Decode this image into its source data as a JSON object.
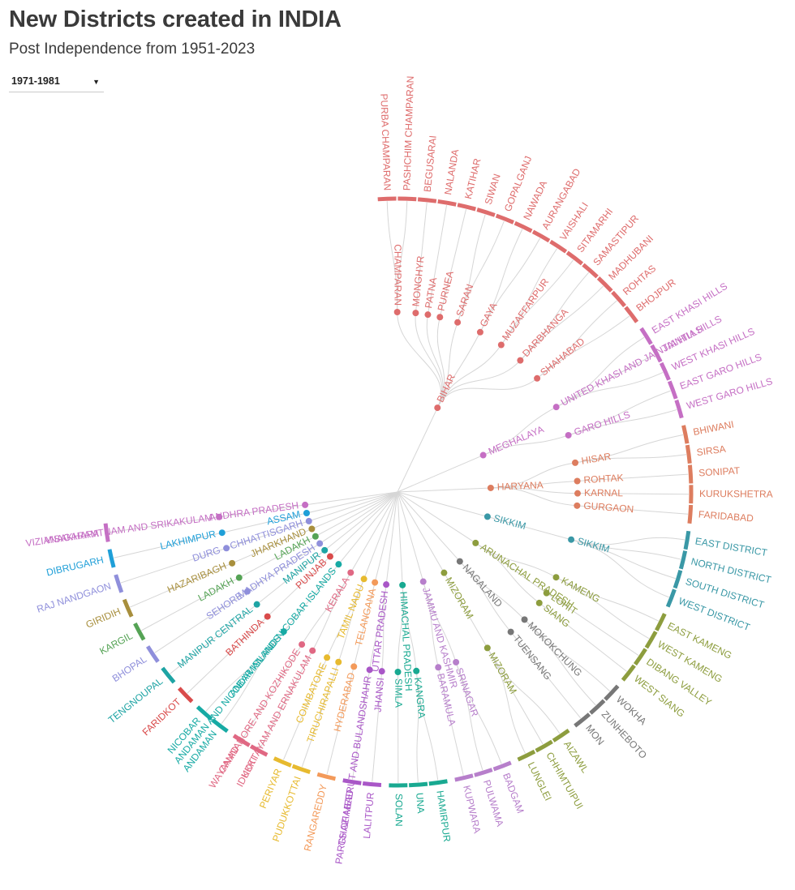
{
  "title": "New Districts created in INDIA",
  "subtitle": "Post Independence from 1951-2023",
  "filter": {
    "selected": "1971-1981",
    "icon": "chevron-down-icon"
  },
  "chart_data": {
    "type": "radial-tree",
    "title": "New Districts created in INDIA",
    "subtitle": "Post Independence from 1951-2023",
    "period": "1971-1981",
    "colors": {
      "BIHAR": "#de6c6c",
      "MEGHALAYA": "#c56fc4",
      "HARYANA": "#dd7d5f",
      "SIKKIM": "#3a98a6",
      "ARUNACHAL PRADESH": "#8d9d3e",
      "NAGALAND": "#777777",
      "MIZORAM": "#8d9d3e",
      "JAMMU AND KASHMIR": "#b77fcb",
      "HIMACHAL PRADESH": "#19a991",
      "UTTAR PRADESH": "#a957c7",
      "TELANGANA": "#f39a5a",
      "TAMIL NADU": "#e7ba2f",
      "KERALA": "#e06883",
      "ANDAMAN AND NICOBAR ISLANDS": "#17aaa4",
      "PUNJAB": "#d94b4b",
      "MANIPUR": "#1ea4a4",
      "MADHYA PRADESH": "#8f8fdb",
      "LADAKH": "#55a355",
      "JHARKHAND": "#a88f3d",
      "CHHATTISGARH": "#8f8fdb",
      "ASSAM": "#1f9fd8",
      "ANDHRA PRADESH": "#c56fc4"
    },
    "states": [
      {
        "name": "BIHAR",
        "label": "BIHAR",
        "parents": [
          {
            "name": "CHAMPARAN",
            "new": [
              "PURBA CHAMPARAN",
              "PASHCHIM CHAMPARAN"
            ]
          },
          {
            "name": "MONGHYR",
            "new": [
              "BEGUSARAI"
            ]
          },
          {
            "name": "PATNA",
            "new": [
              "NALANDA"
            ]
          },
          {
            "name": "PURNEA",
            "new": [
              "KATIHAR"
            ]
          },
          {
            "name": "SARAN",
            "new": [
              "SIWAN",
              "GOPALGANJ"
            ]
          },
          {
            "name": "GAYA",
            "new": [
              "NAWADA",
              "AURANGABAD"
            ]
          },
          {
            "name": "MUZAFFARPUR",
            "new": [
              "VAISHALI",
              "SITAMARHI"
            ]
          },
          {
            "name": "DARBHANGA",
            "new": [
              "SAMASTIPUR",
              "MADHUBANI"
            ]
          },
          {
            "name": "SHAHABAD",
            "new": [
              "ROHTAS",
              "BHOJPUR"
            ]
          }
        ]
      },
      {
        "name": "MEGHALAYA",
        "label": "MEGHALAYA",
        "parents": [
          {
            "name": "UNITED KHASI AND JAINTIA HILLS",
            "new": [
              "EAST KHASI HILLS",
              "JAINTIA HILLS",
              "WEST KHASI HILLS"
            ]
          },
          {
            "name": "GARO HILLS",
            "new": [
              "EAST GARO HILLS",
              "WEST GARO HILLS"
            ]
          }
        ]
      },
      {
        "name": "HARYANA",
        "label": "HARYANA",
        "parents": [
          {
            "name": "HISAR",
            "new": [
              "BHIWANI",
              "SIRSA"
            ]
          },
          {
            "name": "ROHTAK",
            "new": [
              "SONIPAT"
            ]
          },
          {
            "name": "KARNAL",
            "new": [
              "KURUKSHETRA"
            ]
          },
          {
            "name": "GURGAON",
            "new": [
              "FARIDABAD"
            ]
          }
        ]
      },
      {
        "name": "SIKKIM",
        "label": "SIKKIM",
        "parents": [
          {
            "name": "SIKKIM",
            "new": [
              "EAST DISTRICT",
              "NORTH DISTRICT",
              "SOUTH DISTRICT",
              "WEST DISTRICT"
            ]
          }
        ]
      },
      {
        "name": "ARUNACHAL PRADESH",
        "label": "ARUNACHAL PRADESH",
        "parents": [
          {
            "name": "KAMENG",
            "new": [
              "EAST KAMENG",
              "WEST KAMENG"
            ]
          },
          {
            "name": "LOHIT",
            "new": [
              "DIBANG VALLEY"
            ]
          },
          {
            "name": "SIANG",
            "new": [
              "WEST SIANG"
            ]
          }
        ]
      },
      {
        "name": "NAGALAND",
        "label": "NAGALAND",
        "parents": [
          {
            "name": "MOKOKCHUNG",
            "new": [
              "WOKHA",
              "ZUNHEBOTO"
            ]
          },
          {
            "name": "TUENSANG",
            "new": [
              "MON"
            ]
          }
        ]
      },
      {
        "name": "MIZORAM",
        "label": "MIZORAM",
        "parents": [
          {
            "name": "MIZORAM",
            "new": [
              "AIZAWL",
              "CHHIMTUIPUI",
              "LUNGLEI"
            ]
          }
        ]
      },
      {
        "name": "JAMMU AND KASHMIR",
        "label": "JAMMU AND KASHMIR",
        "parents": [
          {
            "name": "SRINAGAR",
            "new": [
              "BADGAM",
              "PULWAMA"
            ]
          },
          {
            "name": "BARAMULA",
            "new": [
              "KUPWARA"
            ]
          }
        ]
      },
      {
        "name": "HIMACHAL PRADESH",
        "label": "HIMACHAL PRADESH",
        "parents": [
          {
            "name": "KANGRA",
            "new": [
              "HAMIRPUR",
              "UNA"
            ]
          },
          {
            "name": "SIMLA",
            "new": [
              "SOLAN"
            ]
          }
        ]
      },
      {
        "name": "UTTAR PRADESH",
        "label": "UTTAR PRADESH",
        "parents": [
          {
            "name": "JHANSI",
            "new": [
              "LALITPUR"
            ]
          },
          {
            "name": "PARTS OF MEERUT AND BULANDSHAHR",
            "new": [
              "GHAZIABAD"
            ]
          }
        ]
      },
      {
        "name": "TELANGANA",
        "label": "TELANGANA",
        "parents": [
          {
            "name": "HYDERABAD",
            "new": [
              "RANGAREDDY"
            ]
          }
        ]
      },
      {
        "name": "TAMIL NADU",
        "label": "TAMIL NADU",
        "parents": [
          {
            "name": "TIRUCHIRAPALLI",
            "new": [
              "PUDUKKOTTAI"
            ]
          },
          {
            "name": "COIMBATORE",
            "new": [
              "PERIYAR"
            ]
          }
        ]
      },
      {
        "name": "KERALA",
        "label": "KERALA",
        "parents": [
          {
            "name": "KOTTAYAM AND ERNAKULAM",
            "new": [
              "IDUKKI"
            ]
          },
          {
            "name": "CANNANORE AND KOZHIKODE",
            "new": [
              "WAYANAD"
            ]
          }
        ]
      },
      {
        "name": "ANDAMAN AND NICOBAR ISLANDS",
        "label": "ANDAMAN AND NICOBAR ISLANDS",
        "parents": [
          {
            "name": "ANDAMAN AND NICOBAR ISLANDS",
            "new": [
              "ANDAMAN",
              "NICOBAR"
            ]
          }
        ]
      },
      {
        "name": "PUNJAB",
        "label": "PUNJAB",
        "parents": [
          {
            "name": "BATHINDA",
            "new": [
              "FARIDKOT"
            ]
          }
        ]
      },
      {
        "name": "MANIPUR",
        "label": "MANIPUR",
        "parents": [
          {
            "name": "MANIPUR CENTRAL",
            "new": [
              "TENGNOUPAL"
            ]
          }
        ]
      },
      {
        "name": "MADHYA PRADESH",
        "label": "MADHYA PRADESH",
        "parents": [
          {
            "name": "SEHORE",
            "new": [
              "BHOPAL"
            ]
          }
        ]
      },
      {
        "name": "LADAKH",
        "label": "LADAKH",
        "parents": [
          {
            "name": "LADAKH",
            "new": [
              "KARGIL"
            ]
          }
        ]
      },
      {
        "name": "JHARKHAND",
        "label": "JHARKHAND",
        "parents": [
          {
            "name": "HAZARIBAGH",
            "new": [
              "GIRIDIH"
            ]
          }
        ]
      },
      {
        "name": "CHHATTISGARH",
        "label": "CHHATTISGARH",
        "parents": [
          {
            "name": "DURG",
            "new": [
              "RAJ NANDGAON"
            ]
          }
        ]
      },
      {
        "name": "ASSAM",
        "label": "ASSAM",
        "parents": [
          {
            "name": "LAKHIMPUR",
            "new": [
              "DIBRUGARH"
            ]
          }
        ]
      },
      {
        "name": "ANDHRA PRADESH",
        "label": "ANDHRA PRADESH",
        "parents": [
          {
            "name": "VISAKHAPATNAM AND SRIKAKULAM",
            "new": [
              "VIZIANAGARAM"
            ]
          }
        ]
      }
    ]
  }
}
